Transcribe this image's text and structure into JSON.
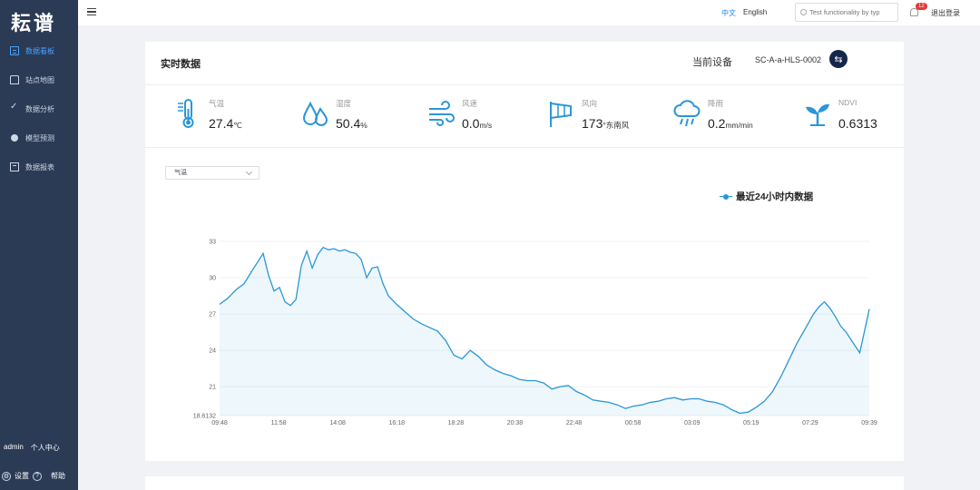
{
  "sidebar": {
    "logo": "耘谱",
    "items": [
      {
        "label": "数据看板",
        "icon": "dashboard-icon",
        "active": true
      },
      {
        "label": "站点地图",
        "icon": "map-icon"
      },
      {
        "label": "数据分析",
        "icon": "analysis-icon"
      },
      {
        "label": "模型预测",
        "icon": "model-icon"
      },
      {
        "label": "数据报表",
        "icon": "report-icon"
      }
    ],
    "user": "admin",
    "profile": "个人中心",
    "settings": "设置",
    "help": "帮助"
  },
  "header": {
    "lang_zh": "中文",
    "lang_en": "English",
    "search_placeholder": "Test functionality by typ",
    "notification_count": "12",
    "logout": "退出登录"
  },
  "realtime": {
    "title": "实时数据",
    "device_label": "当前设备",
    "device_id": "SC-A-a-HLS-0002",
    "switch_glyph": "⇆",
    "metrics": [
      {
        "label": "气温",
        "value": "27.4",
        "unit": "℃",
        "icon": "thermometer-icon"
      },
      {
        "label": "湿度",
        "value": "50.4",
        "unit": "%",
        "icon": "humidity-drops-icon"
      },
      {
        "label": "风速",
        "value": "0.0",
        "unit": "m/s",
        "icon": "wind-icon"
      },
      {
        "label": "风向",
        "value": "173",
        "unit": "°东南风",
        "icon": "wind-flag-icon"
      },
      {
        "label": "降雨",
        "value": "0.2",
        "unit": "mm/min",
        "icon": "rain-cloud-icon"
      },
      {
        "label": "NDVI",
        "value": "0.6313",
        "unit": "",
        "icon": "sprout-icon"
      }
    ]
  },
  "chart_select": "气温",
  "accent": "#2b96d8",
  "chart_data": {
    "type": "area",
    "legend": "最近24小时内数据",
    "legend_position": "top-right",
    "yticks": [
      "18.6132",
      "21",
      "24",
      "27",
      "30",
      "33"
    ],
    "xticks": [
      "09:48",
      "11:58",
      "14:08",
      "16:18",
      "18:28",
      "20:38",
      "22:48",
      "00:58",
      "03:09",
      "05:19",
      "07:29",
      "09:39"
    ],
    "ylim": [
      18.6132,
      33
    ],
    "grid": true,
    "x": [
      0,
      0.3,
      0.6,
      0.9,
      1.2,
      1.4,
      1.6,
      1.8,
      2.0,
      2.2,
      2.4,
      2.6,
      2.8,
      3.0,
      3.2,
      3.4,
      3.6,
      3.8,
      4.0,
      4.2,
      4.4,
      4.6,
      4.8,
      5.0,
      5.2,
      5.4,
      5.6,
      5.8,
      6.0,
      6.2,
      6.5,
      6.8,
      7.1,
      7.4,
      7.7,
      8.0,
      8.3,
      8.6,
      8.9,
      9.2,
      9.5,
      9.8,
      10.1,
      10.4,
      10.7,
      11.0,
      11.3,
      11.6,
      11.9,
      12.2,
      12.5,
      12.8,
      13.1,
      13.4,
      13.7,
      14.0,
      14.3,
      14.6,
      14.9,
      15.2,
      15.5,
      15.8,
      16.1,
      16.4,
      16.7,
      17.0,
      17.3,
      17.6,
      17.9,
      18.2,
      18.5,
      18.8,
      19.1,
      19.4,
      19.7,
      20.0,
      20.3,
      20.6,
      20.9,
      21.2,
      21.5,
      21.8,
      22.0,
      22.2,
      22.4,
      22.6,
      22.8,
      23.0,
      23.2,
      23.5,
      23.85
    ],
    "values": [
      27.8,
      28.3,
      29.0,
      29.5,
      30.6,
      31.3,
      32.0,
      30.2,
      28.9,
      29.2,
      28.0,
      27.7,
      28.2,
      31.0,
      32.2,
      30.8,
      31.9,
      32.5,
      32.3,
      32.4,
      32.2,
      32.3,
      32.1,
      32.0,
      31.5,
      30.0,
      30.8,
      30.9,
      29.5,
      28.5,
      27.8,
      27.2,
      26.6,
      26.2,
      25.9,
      25.6,
      24.8,
      23.6,
      23.3,
      24.0,
      23.5,
      22.8,
      22.4,
      22.1,
      21.9,
      21.6,
      21.5,
      21.5,
      21.3,
      20.8,
      21.0,
      21.1,
      20.6,
      20.3,
      19.9,
      19.8,
      19.7,
      19.5,
      19.2,
      19.4,
      19.5,
      19.7,
      19.8,
      20.0,
      20.1,
      19.9,
      20.0,
      20.0,
      19.8,
      19.7,
      19.5,
      19.1,
      18.8,
      18.9,
      19.3,
      19.8,
      20.6,
      21.8,
      23.2,
      24.6,
      25.8,
      27.0,
      27.6,
      28.0,
      27.5,
      26.8,
      26.0,
      25.5,
      24.8,
      23.8,
      27.4
    ],
    "x_start": 0,
    "x_end": 23.85
  }
}
